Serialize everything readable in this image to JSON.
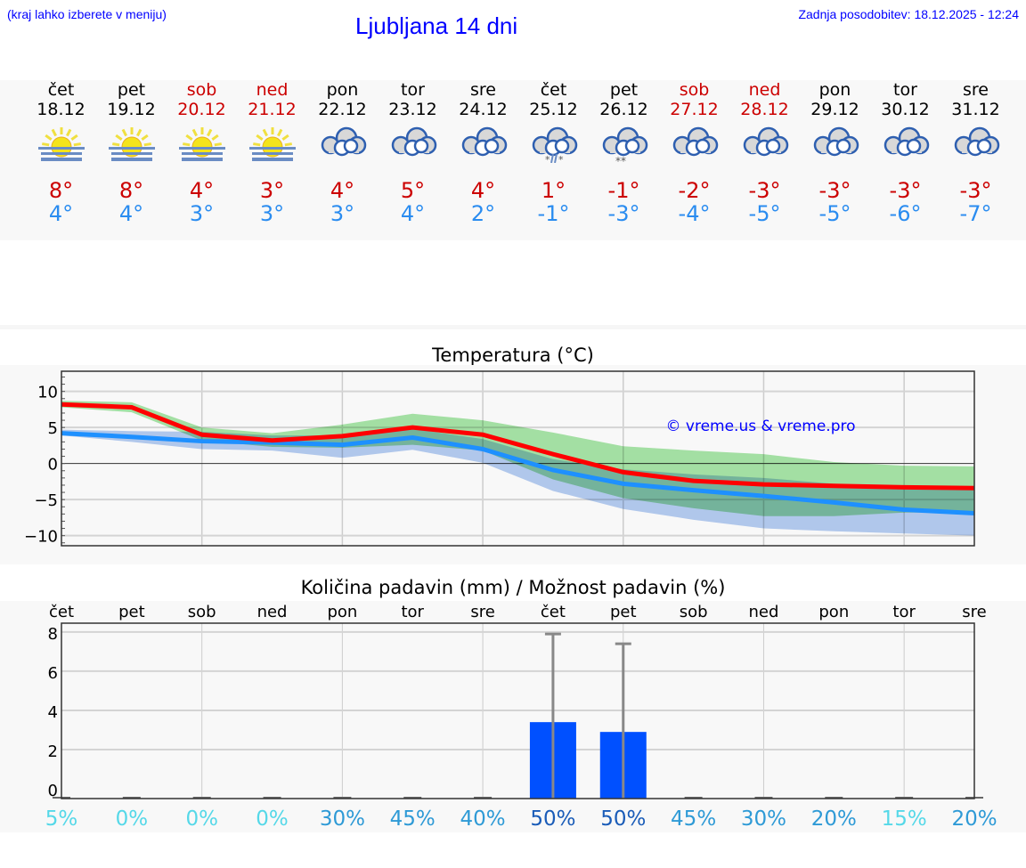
{
  "header": {
    "hint": "(kraj lahko izberete v meniju)",
    "title": "Ljubljana 14 dni",
    "updated": "Zadnja posodobitev: 18.12.2025 - 12:24"
  },
  "days": [
    {
      "name": "čet",
      "date": "18.12",
      "weekend": false,
      "icon": "sun-fog-icon",
      "max": "8°",
      "min": "4°"
    },
    {
      "name": "pet",
      "date": "19.12",
      "weekend": false,
      "icon": "sun-fog-icon",
      "max": "8°",
      "min": "4°"
    },
    {
      "name": "sob",
      "date": "20.12",
      "weekend": true,
      "icon": "sun-fog-icon",
      "max": "4°",
      "min": "3°"
    },
    {
      "name": "ned",
      "date": "21.12",
      "weekend": true,
      "icon": "sun-fog-icon",
      "max": "3°",
      "min": "3°"
    },
    {
      "name": "pon",
      "date": "22.12",
      "weekend": false,
      "icon": "cloudy-icon",
      "max": "4°",
      "min": "3°"
    },
    {
      "name": "tor",
      "date": "23.12",
      "weekend": false,
      "icon": "cloudy-icon",
      "max": "5°",
      "min": "4°"
    },
    {
      "name": "sre",
      "date": "24.12",
      "weekend": false,
      "icon": "cloudy-icon",
      "max": "4°",
      "min": "2°"
    },
    {
      "name": "čet",
      "date": "25.12",
      "weekend": false,
      "icon": "cloudy-sleet-icon",
      "max": "1°",
      "min": "-1°"
    },
    {
      "name": "pet",
      "date": "26.12",
      "weekend": false,
      "icon": "cloudy-snow-icon",
      "max": "-1°",
      "min": "-3°"
    },
    {
      "name": "sob",
      "date": "27.12",
      "weekend": true,
      "icon": "cloudy-icon",
      "max": "-2°",
      "min": "-4°"
    },
    {
      "name": "ned",
      "date": "28.12",
      "weekend": true,
      "icon": "cloudy-icon",
      "max": "-3°",
      "min": "-5°"
    },
    {
      "name": "pon",
      "date": "29.12",
      "weekend": false,
      "icon": "cloudy-icon",
      "max": "-3°",
      "min": "-5°"
    },
    {
      "name": "tor",
      "date": "30.12",
      "weekend": false,
      "icon": "cloudy-icon",
      "max": "-3°",
      "min": "-6°"
    },
    {
      "name": "sre",
      "date": "31.12",
      "weekend": false,
      "icon": "cloudy-icon",
      "max": "-3°",
      "min": "-7°"
    }
  ],
  "colors": {
    "weekend": "#cc0000",
    "max": "#ff0000",
    "min": "#1e90ff",
    "max_band": "#a8e6a8",
    "min_band": "#a8c4f0",
    "bar": "#0050ff"
  },
  "chart_data": [
    {
      "type": "line",
      "title": "Temperatura (°C)",
      "ylim": [
        -11.4,
        12.8
      ],
      "yticks": [
        10,
        5,
        0,
        -5,
        -10
      ],
      "ytick_labels": [
        "10",
        "5",
        "0",
        "−5",
        "−10"
      ],
      "grid": true,
      "watermark": "© vreme.us & vreme.pro",
      "series": [
        {
          "values": [
            8.2,
            7.8,
            4,
            3.2,
            3.8,
            5,
            4,
            1.3,
            -1.2,
            -2.4,
            -2.9,
            -3.1,
            -3.3,
            -3.4
          ],
          "band_upper": [
            8.7,
            8.5,
            5,
            4.2,
            5.4,
            6.9,
            6,
            4.3,
            2.4,
            1.8,
            1.3,
            0.2,
            -0.3,
            -0.4
          ],
          "band_lower": [
            7.8,
            7.1,
            3.2,
            2.3,
            2.2,
            2.6,
            1.8,
            -2.2,
            -4.8,
            -6.2,
            -7.3,
            -7.3,
            -6.8,
            -6.8
          ]
        },
        {
          "values": [
            4.2,
            3.7,
            3.1,
            2.9,
            2.6,
            3.6,
            2,
            -0.9,
            -2.8,
            -3.7,
            -4.5,
            -5.4,
            -6.4,
            -6.9
          ],
          "band_upper": [
            4.7,
            4.5,
            4.4,
            3.9,
            3.9,
            4.8,
            3.4,
            0.6,
            -0.8,
            -1.5,
            -2,
            -2.8,
            -3.3,
            -3.4
          ],
          "band_lower": [
            3.9,
            3,
            2,
            1.8,
            0.8,
            1.9,
            0.1,
            -3.8,
            -6.3,
            -7.8,
            -9,
            -9.4,
            -9.7,
            -10
          ]
        }
      ]
    },
    {
      "type": "bar",
      "title": "Količina padavin (mm) / Možnost padavin (%)",
      "ylim": [
        -0.5,
        8.45
      ],
      "yticks": [
        8,
        6,
        4,
        2,
        0
      ],
      "categories": [
        "čet",
        "pet",
        "sob",
        "ned",
        "pon",
        "tor",
        "sre",
        "čet",
        "pet",
        "sob",
        "ned",
        "pon",
        "tor",
        "sre"
      ],
      "values": [
        0,
        0,
        0,
        0,
        0,
        0,
        0,
        3.4,
        2.9,
        0,
        0,
        0,
        0,
        0
      ],
      "max_values": [
        0,
        0,
        0,
        0,
        0,
        0,
        0,
        7.9,
        7.4,
        0,
        0,
        0,
        0,
        0
      ],
      "probability": [
        "5%",
        "0%",
        "0%",
        "0%",
        "30%",
        "45%",
        "40%",
        "50%",
        "50%",
        "45%",
        "30%",
        "20%",
        "15%",
        "20%"
      ],
      "probability_values": [
        5,
        0,
        0,
        0,
        30,
        45,
        40,
        50,
        50,
        45,
        30,
        20,
        15,
        20
      ]
    }
  ]
}
